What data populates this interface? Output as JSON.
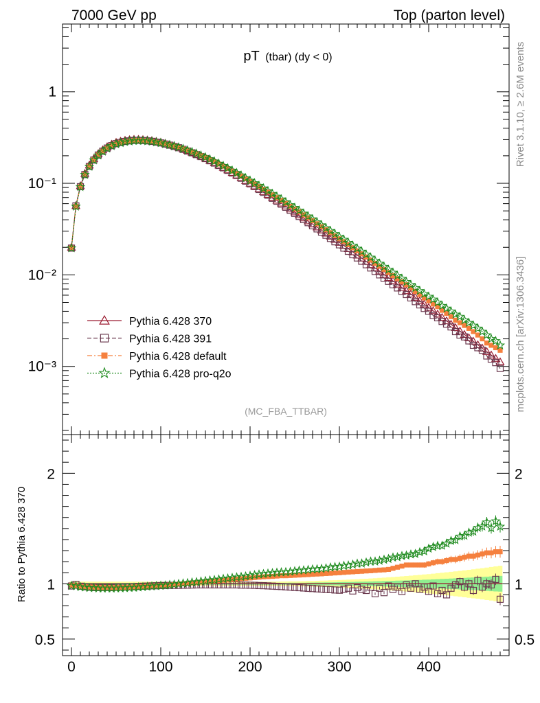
{
  "header": {
    "left": "7000 GeV pp",
    "right": "Top (parton level)"
  },
  "side_labels": {
    "upper": "Rivet 3.1.10, ≥ 2.6M events",
    "lower": "mcplots.cern.ch [arXiv:1306.3436]"
  },
  "chart_data": [
    {
      "type": "line",
      "title": "pT",
      "title_sub": "(tbar) (dy < 0)",
      "watermark": "(MC_FBA_TTBAR)",
      "yscale": "log",
      "xlim": [
        -10,
        490
      ],
      "ylim": [
        0.00018,
        5.5
      ],
      "y_tick_labels": [
        "10⁻³",
        "10⁻²",
        "10⁻¹",
        "1"
      ],
      "legend_position": "bottom-left",
      "x": [
        0,
        5,
        10,
        15,
        20,
        25,
        30,
        35,
        40,
        45,
        50,
        55,
        60,
        65,
        70,
        75,
        80,
        85,
        90,
        95,
        100,
        105,
        110,
        115,
        120,
        125,
        130,
        135,
        140,
        145,
        150,
        155,
        160,
        165,
        170,
        175,
        180,
        185,
        190,
        195,
        200,
        205,
        210,
        215,
        220,
        225,
        230,
        235,
        240,
        245,
        250,
        255,
        260,
        265,
        270,
        275,
        280,
        285,
        290,
        295,
        300,
        305,
        310,
        315,
        320,
        325,
        330,
        335,
        340,
        345,
        350,
        355,
        360,
        365,
        370,
        375,
        380,
        385,
        390,
        395,
        400,
        405,
        410,
        415,
        420,
        425,
        430,
        435,
        440,
        445,
        450,
        455,
        460,
        465,
        470,
        475,
        480
      ],
      "series": [
        {
          "name": "Pythia 6.428 370",
          "color": "#9b1b30",
          "marker": "triangle-open",
          "values": [
            0.02,
            0.057,
            0.094,
            0.128,
            0.158,
            0.186,
            0.211,
            0.232,
            0.251,
            0.267,
            0.28,
            0.288,
            0.295,
            0.299,
            0.302,
            0.302,
            0.3,
            0.297,
            0.293,
            0.287,
            0.281,
            0.273,
            0.265,
            0.257,
            0.248,
            0.238,
            0.228,
            0.218,
            0.208,
            0.198,
            0.188,
            0.178,
            0.168,
            0.158,
            0.149,
            0.14,
            0.131,
            0.123,
            0.115,
            0.107,
            0.1,
            0.0934,
            0.0871,
            0.0811,
            0.0755,
            0.0702,
            0.0653,
            0.0607,
            0.0564,
            0.0523,
            0.0486,
            0.0451,
            0.0418,
            0.0388,
            0.0359,
            0.0333,
            0.0308,
            0.0285,
            0.0264,
            0.0244,
            0.0226,
            0.0209,
            0.0193,
            0.0178,
            0.0164,
            0.0152,
            0.014,
            0.0129,
            0.0119,
            0.011,
            0.0101,
            0.00931,
            0.00858,
            0.0079,
            0.00727,
            0.00669,
            0.00616,
            0.00567,
            0.00521,
            0.00479,
            0.0044,
            0.00405,
            0.00372,
            0.00342,
            0.00314,
            0.00288,
            0.00265,
            0.00243,
            0.00223,
            0.00205,
            0.00188,
            0.00172,
            0.00158,
            0.00145,
            0.00133,
            0.00122,
            0.00112
          ]
        },
        {
          "name": "Pythia 6.428 391",
          "color": "#6b3a4f",
          "marker": "square-open",
          "values": [
            0.0196,
            0.0567,
            0.0919,
            0.1246,
            0.1531,
            0.1797,
            0.2038,
            0.2243,
            0.2428,
            0.258,
            0.2713,
            0.2794,
            0.2867,
            0.2909,
            0.2943,
            0.2947,
            0.2933,
            0.2909,
            0.2874,
            0.2819,
            0.2764,
            0.2687,
            0.2611,
            0.2533,
            0.2447,
            0.235,
            0.2254,
            0.2157,
            0.2059,
            0.1961,
            0.1864,
            0.1766,
            0.1666,
            0.1567,
            0.1477,
            0.1387,
            0.1298,
            0.1218,
            0.1137,
            0.1057,
            0.0987,
            0.0921,
            0.0857,
            0.0797,
            0.0741,
            0.0687,
            0.0638,
            0.0592,
            0.0548,
            0.0507,
            0.047,
            0.0435,
            0.0402,
            0.0372,
            0.0344,
            0.0318,
            0.0293,
            0.0271,
            0.025,
            0.023,
            0.0213,
            0.0196,
            0.0181,
            0.0166,
            0.0153,
            0.0141,
            0.0129,
            0.0119,
            0.0109,
            0.01,
            0.0092,
            0.0085,
            0.0078,
            0.0072,
            0.0066,
            0.0061,
            0.0056,
            0.0051,
            0.0047,
            0.0043,
            0.004,
            0.0036,
            0.0034,
            0.0031,
            0.0029,
            0.0027,
            0.0024,
            0.0022,
            0.0021,
            0.0019,
            0.0017,
            0.0016,
            0.0015,
            0.0013,
            0.0012,
            0.0011,
            0.00095
          ]
        },
        {
          "name": "Pythia 6.428 default",
          "color": "#f5803e",
          "marker": "square-filled",
          "values": [
            0.0197,
            0.0561,
            0.0918,
            0.1246,
            0.1534,
            0.1804,
            0.2042,
            0.2242,
            0.2427,
            0.2579,
            0.2705,
            0.2784,
            0.2855,
            0.2898,
            0.2934,
            0.294,
            0.2925,
            0.2902,
            0.2867,
            0.2814,
            0.2762,
            0.2691,
            0.2621,
            0.255,
            0.2471,
            0.2379,
            0.2289,
            0.2197,
            0.2103,
            0.2009,
            0.1915,
            0.1819,
            0.1722,
            0.1625,
            0.1537,
            0.1449,
            0.1361,
            0.1282,
            0.1203,
            0.1123,
            0.1053,
            0.0987,
            0.0923,
            0.0862,
            0.0804,
            0.0749,
            0.0699,
            0.0651,
            0.0605,
            0.0562,
            0.0524,
            0.0487,
            0.0452,
            0.042,
            0.039,
            0.0362,
            0.0336,
            0.0311,
            0.0289,
            0.0268,
            0.0248,
            0.0231,
            0.0214,
            0.0198,
            0.0183,
            0.017,
            0.0157,
            0.0145,
            0.0134,
            0.0124,
            0.0115,
            0.0106,
            0.0098,
            0.0091,
            0.0084,
            0.0078,
            0.0072,
            0.0066,
            0.0061,
            0.0056,
            0.0052,
            0.0048,
            0.0045,
            0.0041,
            0.0038,
            0.0035,
            0.0032,
            0.003,
            0.0028,
            0.0026,
            0.0024,
            0.0022,
            0.002,
            0.0018,
            0.0017,
            0.0016,
            0.0015
          ]
        },
        {
          "name": "Pythia 6.428 pro-q2o",
          "color": "#1e8b1e",
          "marker": "star-open",
          "values": [
            0.0196,
            0.0558,
            0.0913,
            0.1239,
            0.1522,
            0.1789,
            0.2024,
            0.2224,
            0.2408,
            0.2559,
            0.2685,
            0.2763,
            0.2836,
            0.2879,
            0.2916,
            0.2924,
            0.2912,
            0.2893,
            0.2862,
            0.2812,
            0.2762,
            0.2693,
            0.2625,
            0.2555,
            0.2477,
            0.2386,
            0.2296,
            0.2206,
            0.2114,
            0.2021,
            0.1929,
            0.1835,
            0.1739,
            0.1643,
            0.1556,
            0.1468,
            0.1381,
            0.1302,
            0.1223,
            0.1143,
            0.1073,
            0.1008,
            0.0945,
            0.0883,
            0.0825,
            0.077,
            0.0719,
            0.067,
            0.0624,
            0.058,
            0.0542,
            0.0505,
            0.0469,
            0.0437,
            0.0406,
            0.0377,
            0.035,
            0.0325,
            0.0303,
            0.0281,
            0.0261,
            0.0243,
            0.0225,
            0.0209,
            0.0194,
            0.018,
            0.0167,
            0.0155,
            0.0143,
            0.0133,
            0.0123,
            0.0114,
            0.0106,
            0.0098,
            0.0091,
            0.0084,
            0.0078,
            0.0072,
            0.0067,
            0.0062,
            0.0058,
            0.0054,
            0.005,
            0.0046,
            0.0043,
            0.004,
            0.0037,
            0.0035,
            0.0032,
            0.003,
            0.0028,
            0.0026,
            0.0024,
            0.0022,
            0.002,
            0.0019,
            0.0017
          ]
        }
      ]
    },
    {
      "type": "line",
      "ylabel": "Ratio to Pythia 6.428 370",
      "xlim": [
        -10,
        490
      ],
      "ylim": [
        0.35,
        2.35
      ],
      "y_ticks": [
        0.5,
        1,
        2
      ],
      "x_ticks": [
        0,
        100,
        200,
        300,
        400
      ],
      "reference": {
        "name": "Pythia 6.428 370",
        "color": "#9b1b30",
        "value": 1
      },
      "band_colors": [
        "#ffff99",
        "#90ee90"
      ],
      "x": [
        0,
        5,
        10,
        15,
        20,
        25,
        30,
        35,
        40,
        45,
        50,
        55,
        60,
        65,
        70,
        75,
        80,
        85,
        90,
        95,
        100,
        105,
        110,
        115,
        120,
        125,
        130,
        135,
        140,
        145,
        150,
        155,
        160,
        165,
        170,
        175,
        180,
        185,
        190,
        195,
        200,
        205,
        210,
        215,
        220,
        225,
        230,
        235,
        240,
        245,
        250,
        255,
        260,
        265,
        270,
        275,
        280,
        285,
        290,
        295,
        300,
        305,
        310,
        315,
        320,
        325,
        330,
        335,
        340,
        345,
        350,
        355,
        360,
        365,
        370,
        375,
        380,
        385,
        390,
        395,
        400,
        405,
        410,
        415,
        420,
        425,
        430,
        435,
        440,
        445,
        450,
        455,
        460,
        465,
        470,
        475,
        480
      ],
      "series": [
        {
          "name": "Pythia 6.428 391",
          "color": "#6b3a4f",
          "marker": "square-open",
          "values": [
            0.98,
            0.995,
            0.978,
            0.973,
            0.969,
            0.966,
            0.966,
            0.967,
            0.967,
            0.966,
            0.969,
            0.97,
            0.972,
            0.973,
            0.974,
            0.976,
            0.978,
            0.979,
            0.981,
            0.982,
            0.984,
            0.984,
            0.985,
            0.986,
            0.986,
            0.987,
            0.988,
            0.989,
            0.99,
            0.99,
            0.99,
            0.99,
            0.99,
            0.99,
            0.99,
            0.99,
            0.99,
            0.99,
            0.988,
            0.988,
            0.987,
            0.986,
            0.984,
            0.983,
            0.981,
            0.979,
            0.977,
            0.975,
            0.972,
            0.97,
            0.967,
            0.965,
            0.962,
            0.959,
            0.957,
            0.954,
            0.952,
            0.949,
            0.947,
            0.944,
            0.942,
            0.95,
            0.96,
            0.935,
            0.965,
            0.95,
            0.94,
            0.97,
            0.91,
            0.96,
            0.92,
            0.98,
            0.95,
            0.97,
            0.93,
            0.99,
            0.96,
            1.0,
            0.95,
            0.97,
            0.93,
            0.98,
            0.91,
            0.94,
            0.9,
            0.96,
            0.99,
            1.02,
            0.97,
            1.0,
            0.94,
            1.03,
            0.97,
            1.0,
            0.99,
            1.04,
            0.86
          ]
        },
        {
          "name": "Pythia 6.428 default",
          "color": "#f5803e",
          "marker": "square-filled",
          "values": [
            0.985,
            0.985,
            0.976,
            0.973,
            0.971,
            0.97,
            0.968,
            0.967,
            0.967,
            0.966,
            0.966,
            0.967,
            0.968,
            0.969,
            0.972,
            0.973,
            0.975,
            0.977,
            0.979,
            0.981,
            0.984,
            0.985,
            0.989,
            0.992,
            0.996,
            1.0,
            1.004,
            1.008,
            1.011,
            1.015,
            1.019,
            1.022,
            1.025,
            1.028,
            1.032,
            1.035,
            1.039,
            1.042,
            1.046,
            1.05,
            1.053,
            1.057,
            1.06,
            1.063,
            1.065,
            1.067,
            1.07,
            1.073,
            1.073,
            1.075,
            1.077,
            1.079,
            1.081,
            1.083,
            1.086,
            1.088,
            1.09,
            1.093,
            1.095,
            1.098,
            1.1,
            1.103,
            1.106,
            1.108,
            1.111,
            1.113,
            1.116,
            1.118,
            1.121,
            1.124,
            1.126,
            1.13,
            1.14,
            1.15,
            1.16,
            1.17,
            1.17,
            1.17,
            1.17,
            1.17,
            1.18,
            1.19,
            1.2,
            1.2,
            1.21,
            1.22,
            1.22,
            1.23,
            1.24,
            1.25,
            1.25,
            1.26,
            1.27,
            1.28,
            1.28,
            1.29,
            1.29
          ]
        },
        {
          "name": "Pythia 6.428 pro-q2o",
          "color": "#1e8b1e",
          "marker": "star-open",
          "values": [
            0.982,
            0.979,
            0.971,
            0.968,
            0.963,
            0.962,
            0.959,
            0.958,
            0.959,
            0.958,
            0.959,
            0.96,
            0.961,
            0.963,
            0.965,
            0.968,
            0.971,
            0.974,
            0.977,
            0.98,
            0.983,
            0.985,
            0.99,
            0.994,
            0.999,
            1.003,
            1.007,
            1.013,
            1.016,
            1.021,
            1.026,
            1.031,
            1.035,
            1.04,
            1.045,
            1.049,
            1.054,
            1.059,
            1.063,
            1.068,
            1.073,
            1.079,
            1.085,
            1.089,
            1.093,
            1.097,
            1.101,
            1.104,
            1.106,
            1.109,
            1.114,
            1.12,
            1.122,
            1.126,
            1.131,
            1.132,
            1.136,
            1.14,
            1.148,
            1.152,
            1.155,
            1.163,
            1.166,
            1.174,
            1.183,
            1.184,
            1.193,
            1.202,
            1.202,
            1.209,
            1.218,
            1.225,
            1.238,
            1.241,
            1.252,
            1.256,
            1.266,
            1.27,
            1.286,
            1.294,
            1.318,
            1.333,
            1.344,
            1.345,
            1.364,
            1.389,
            1.396,
            1.429,
            1.435,
            1.463,
            1.473,
            1.508,
            1.519,
            1.557,
            1.504,
            1.567,
            1.518
          ]
        }
      ]
    }
  ]
}
